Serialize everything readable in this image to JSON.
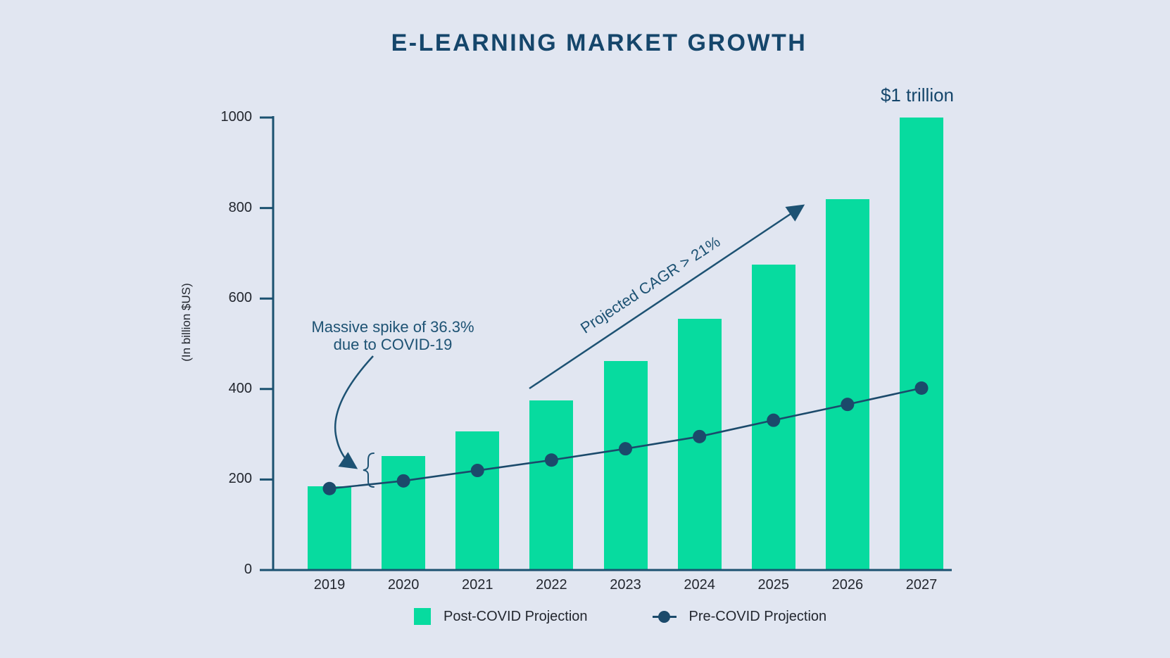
{
  "title": "E-LEARNING MARKET GROWTH",
  "y_axis_title": "(In billion $US)",
  "top_annotation": "$1 trillion",
  "annotations": {
    "spike_line1": "Massive spike of 36.3%",
    "spike_line2": "due to COVID-19",
    "cagr": "Projected CAGR > 21%"
  },
  "legend": {
    "items": [
      {
        "label": "Post-COVID Projection",
        "marker": "bar-swatch"
      },
      {
        "label": "Pre-COVID Projection",
        "marker": "line-dot"
      }
    ]
  },
  "colors": {
    "background": "#e1e6f1",
    "bar_green": "#07db9f",
    "navy": "#1b4a6b",
    "annotation_navy": "#1d5273",
    "title_navy": "#15466b",
    "tick_text": "#23272f"
  },
  "chart_data": {
    "type": "bar",
    "title": "E-LEARNING MARKET GROWTH",
    "ylabel": "(In billion $US)",
    "categories": [
      "2019",
      "2020",
      "2021",
      "2022",
      "2023",
      "2024",
      "2025",
      "2026",
      "2027"
    ],
    "series": [
      {
        "name": "Post-COVID Projection",
        "type": "bar",
        "values": [
          185,
          252,
          306,
          375,
          462,
          555,
          675,
          820,
          1000
        ]
      },
      {
        "name": "Pre-COVID Projection",
        "type": "line",
        "values": [
          180,
          197,
          220,
          243,
          268,
          295,
          331,
          366,
          402
        ]
      }
    ],
    "yticks": [
      0,
      200,
      400,
      600,
      800,
      1000
    ],
    "ylim": [
      0,
      1000
    ],
    "grid": false,
    "legend_position": "bottom",
    "annotations": [
      "Massive spike of 36.3% due to COVID-19 (brace at 2020 gap between line and bar)",
      "Projected CAGR > 21% (diagonal arrow over 2022-2026 bars)",
      "$1 trillion (above 2027 bar)"
    ]
  }
}
